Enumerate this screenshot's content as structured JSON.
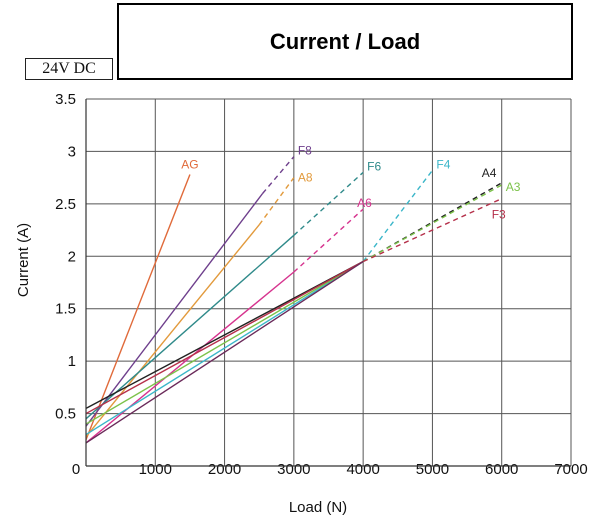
{
  "voltage_label": "24V DC",
  "chart_data": {
    "type": "line",
    "title": "Current / Load",
    "xlabel": "Load (N)",
    "ylabel": "Current (A)",
    "xlim": [
      0,
      7000
    ],
    "ylim": [
      0,
      3.5
    ],
    "x_ticks": [
      0,
      1000,
      2000,
      3000,
      4000,
      5000,
      6000,
      7000
    ],
    "y_ticks": [
      0.5,
      1,
      1.5,
      2,
      2.5,
      3,
      3.5
    ],
    "y_tick_labels": [
      "0.5",
      "1",
      "1.5",
      "2",
      "2.5",
      "3",
      "3.5"
    ],
    "zero_label": "0",
    "grid": true,
    "legend": "none (series labelled at line ends)",
    "series": [
      {
        "name": "AG",
        "color": "#e06a3a",
        "solid": [
          [
            0,
            0.25
          ],
          [
            1500,
            2.78
          ]
        ],
        "dashed": []
      },
      {
        "name": "F8",
        "color": "#6e3f8c",
        "solid": [
          [
            0,
            0.38
          ],
          [
            2550,
            2.6
          ]
        ],
        "dashed": [
          [
            2550,
            2.6
          ],
          [
            3000,
            2.95
          ]
        ]
      },
      {
        "name": "A8",
        "color": "#e29a3c",
        "solid": [
          [
            0,
            0.28
          ],
          [
            2500,
            2.3
          ]
        ],
        "dashed": [
          [
            2500,
            2.3
          ],
          [
            3000,
            2.75
          ]
        ]
      },
      {
        "name": "F6",
        "color": "#2f8a8a",
        "solid": [
          [
            0,
            0.45
          ],
          [
            3000,
            2.2
          ]
        ],
        "dashed": [
          [
            3000,
            2.2
          ],
          [
            4000,
            2.8
          ]
        ]
      },
      {
        "name": "A6",
        "color": "#d6338e",
        "solid": [
          [
            0,
            0.22
          ],
          [
            3000,
            1.85
          ]
        ],
        "dashed": [
          [
            3000,
            1.85
          ],
          [
            4000,
            2.45
          ]
        ]
      },
      {
        "name": "F4",
        "color": "#3bb6c9",
        "solid": [
          [
            0,
            0.3
          ],
          [
            4000,
            1.95
          ]
        ],
        "dashed": [
          [
            4000,
            1.95
          ],
          [
            5000,
            2.82
          ]
        ]
      },
      {
        "name": "A4",
        "color": "#222222",
        "solid": [
          [
            0,
            0.55
          ],
          [
            4000,
            1.95
          ]
        ],
        "dashed": [
          [
            4000,
            1.95
          ],
          [
            6000,
            2.7
          ]
        ]
      },
      {
        "name": "A3",
        "color": "#7cc24a",
        "solid": [
          [
            0,
            0.4
          ],
          [
            4000,
            1.95
          ]
        ],
        "dashed": [
          [
            4000,
            1.95
          ],
          [
            6000,
            2.68
          ]
        ]
      },
      {
        "name": "F3",
        "color": "#b5304a",
        "solid": [
          [
            0,
            0.5
          ],
          [
            4000,
            1.95
          ]
        ],
        "dashed": [
          [
            4000,
            1.95
          ],
          [
            6000,
            2.55
          ]
        ]
      },
      {
        "name": "",
        "color": "#6a2a5a",
        "solid": [
          [
            0,
            0.22
          ],
          [
            4000,
            1.95
          ]
        ],
        "dashed": []
      }
    ]
  }
}
